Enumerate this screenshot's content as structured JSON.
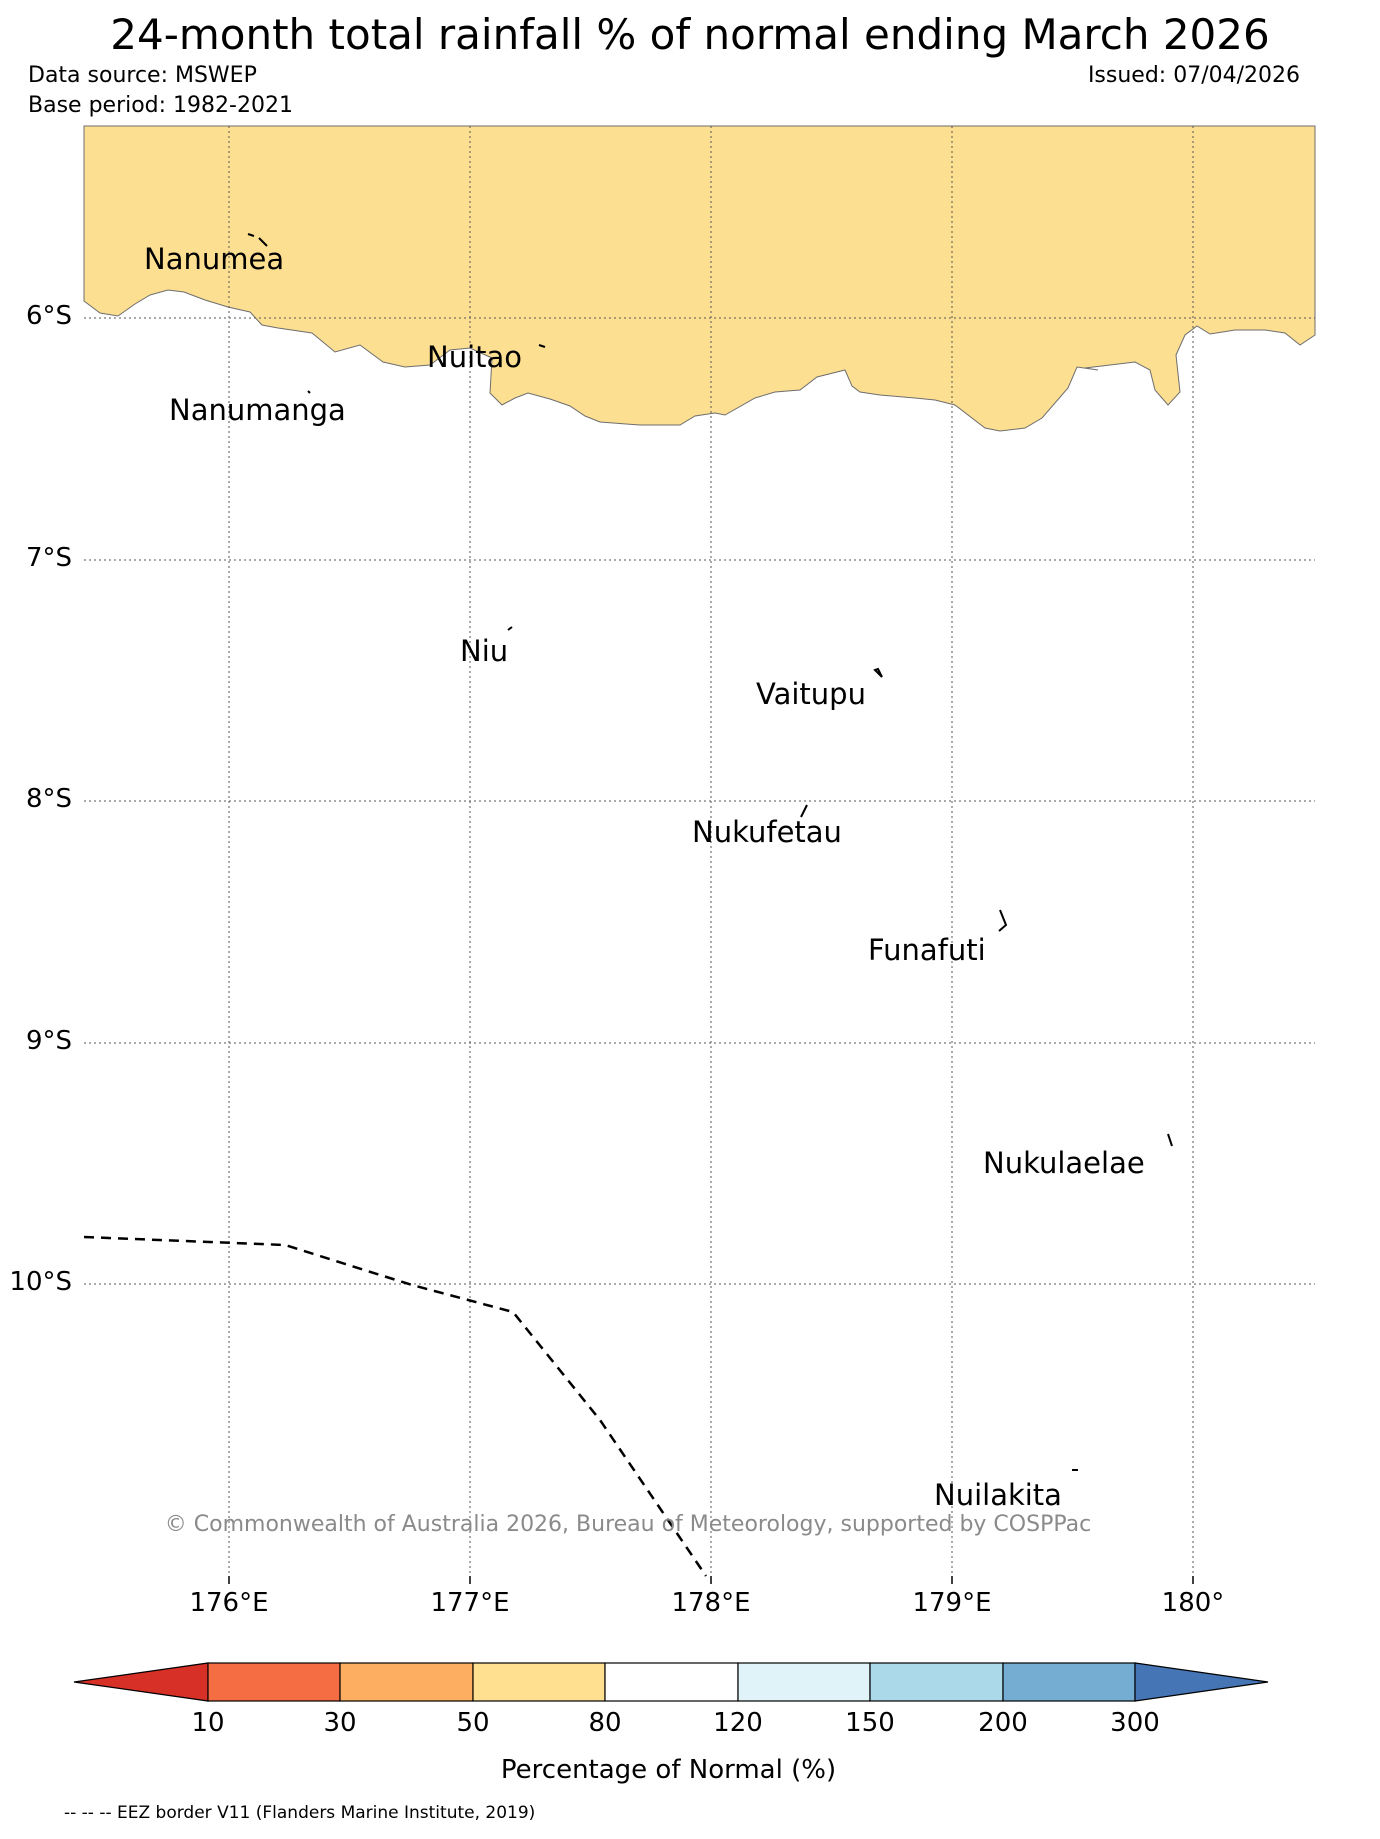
{
  "title": "24-month total rainfall % of normal ending March 2026",
  "data_source": "Data source: MSWEP",
  "base_period": "Base period: 1982-2021",
  "issued": "Issued: 07/04/2026",
  "map": {
    "lat_labels": [
      "6°S",
      "7°S",
      "8°S",
      "9°S",
      "10°S"
    ],
    "lon_labels": [
      "176°E",
      "177°E",
      "178°E",
      "179°E",
      "180°"
    ],
    "places": [
      "Nanumea",
      "Nuitao",
      "Nanumanga",
      "Niu",
      "Vaitupu",
      "Nukufetau",
      "Funafuti",
      "Nukulaelae",
      "Nuilakita"
    ],
    "rain_region_color": "#fddf92",
    "rain_region_category": "50-80"
  },
  "copyright": "© Commonwealth of Australia 2026, Bureau of Meteorology, supported by COSPPac",
  "colorbar": {
    "title": "Percentage of Normal (%)",
    "ticks": [
      "10",
      "30",
      "50",
      "80",
      "120",
      "150",
      "200",
      "300"
    ],
    "colors": [
      "#d73027",
      "#f46d43",
      "#fdae61",
      "#fee090",
      "#ffffff",
      "#e0f3f8",
      "#abd9e9",
      "#74add1",
      "#4575b4"
    ]
  },
  "eez_note": "-- -- -- EEZ border V11 (Flanders Marine Institute, 2019)"
}
